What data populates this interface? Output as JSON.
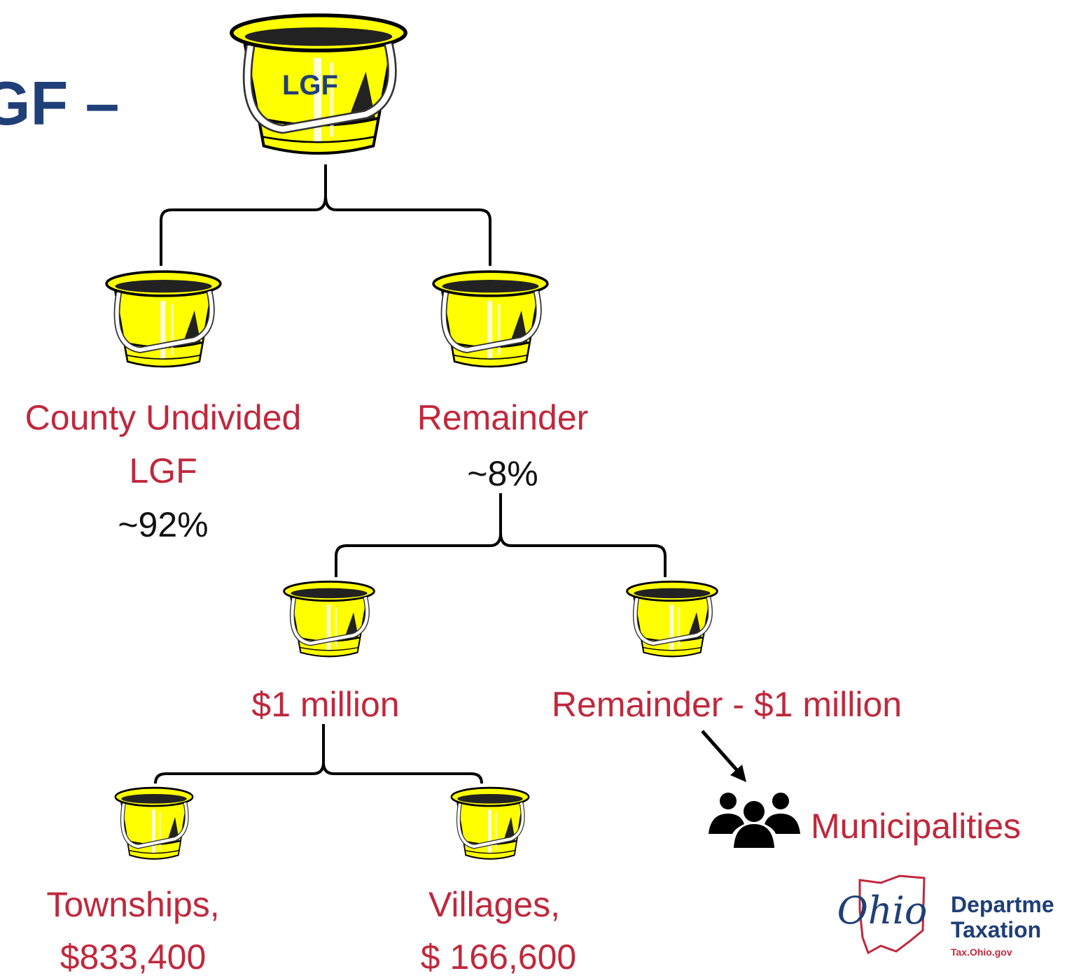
{
  "title": "GF –",
  "root": {
    "label": "LGF"
  },
  "nodes": [
    {
      "lines": [
        "County Undivided",
        "LGF"
      ],
      "share": "~92%"
    },
    {
      "lines": [
        "Remainder"
      ],
      "share": "~8%"
    },
    {
      "lines": [
        "$1 million"
      ]
    },
    {
      "lines": [
        "Remainder - $1 million"
      ]
    },
    {
      "lines": [
        "Townships,",
        "$833,400"
      ]
    },
    {
      "lines": [
        "Villages,",
        "$ 166,600"
      ]
    }
  ],
  "recipient": "Municipalities",
  "logo": {
    "script": "Ohio",
    "lines": [
      "Departme",
      "Taxation"
    ],
    "url": "Tax.Ohio.gov"
  }
}
